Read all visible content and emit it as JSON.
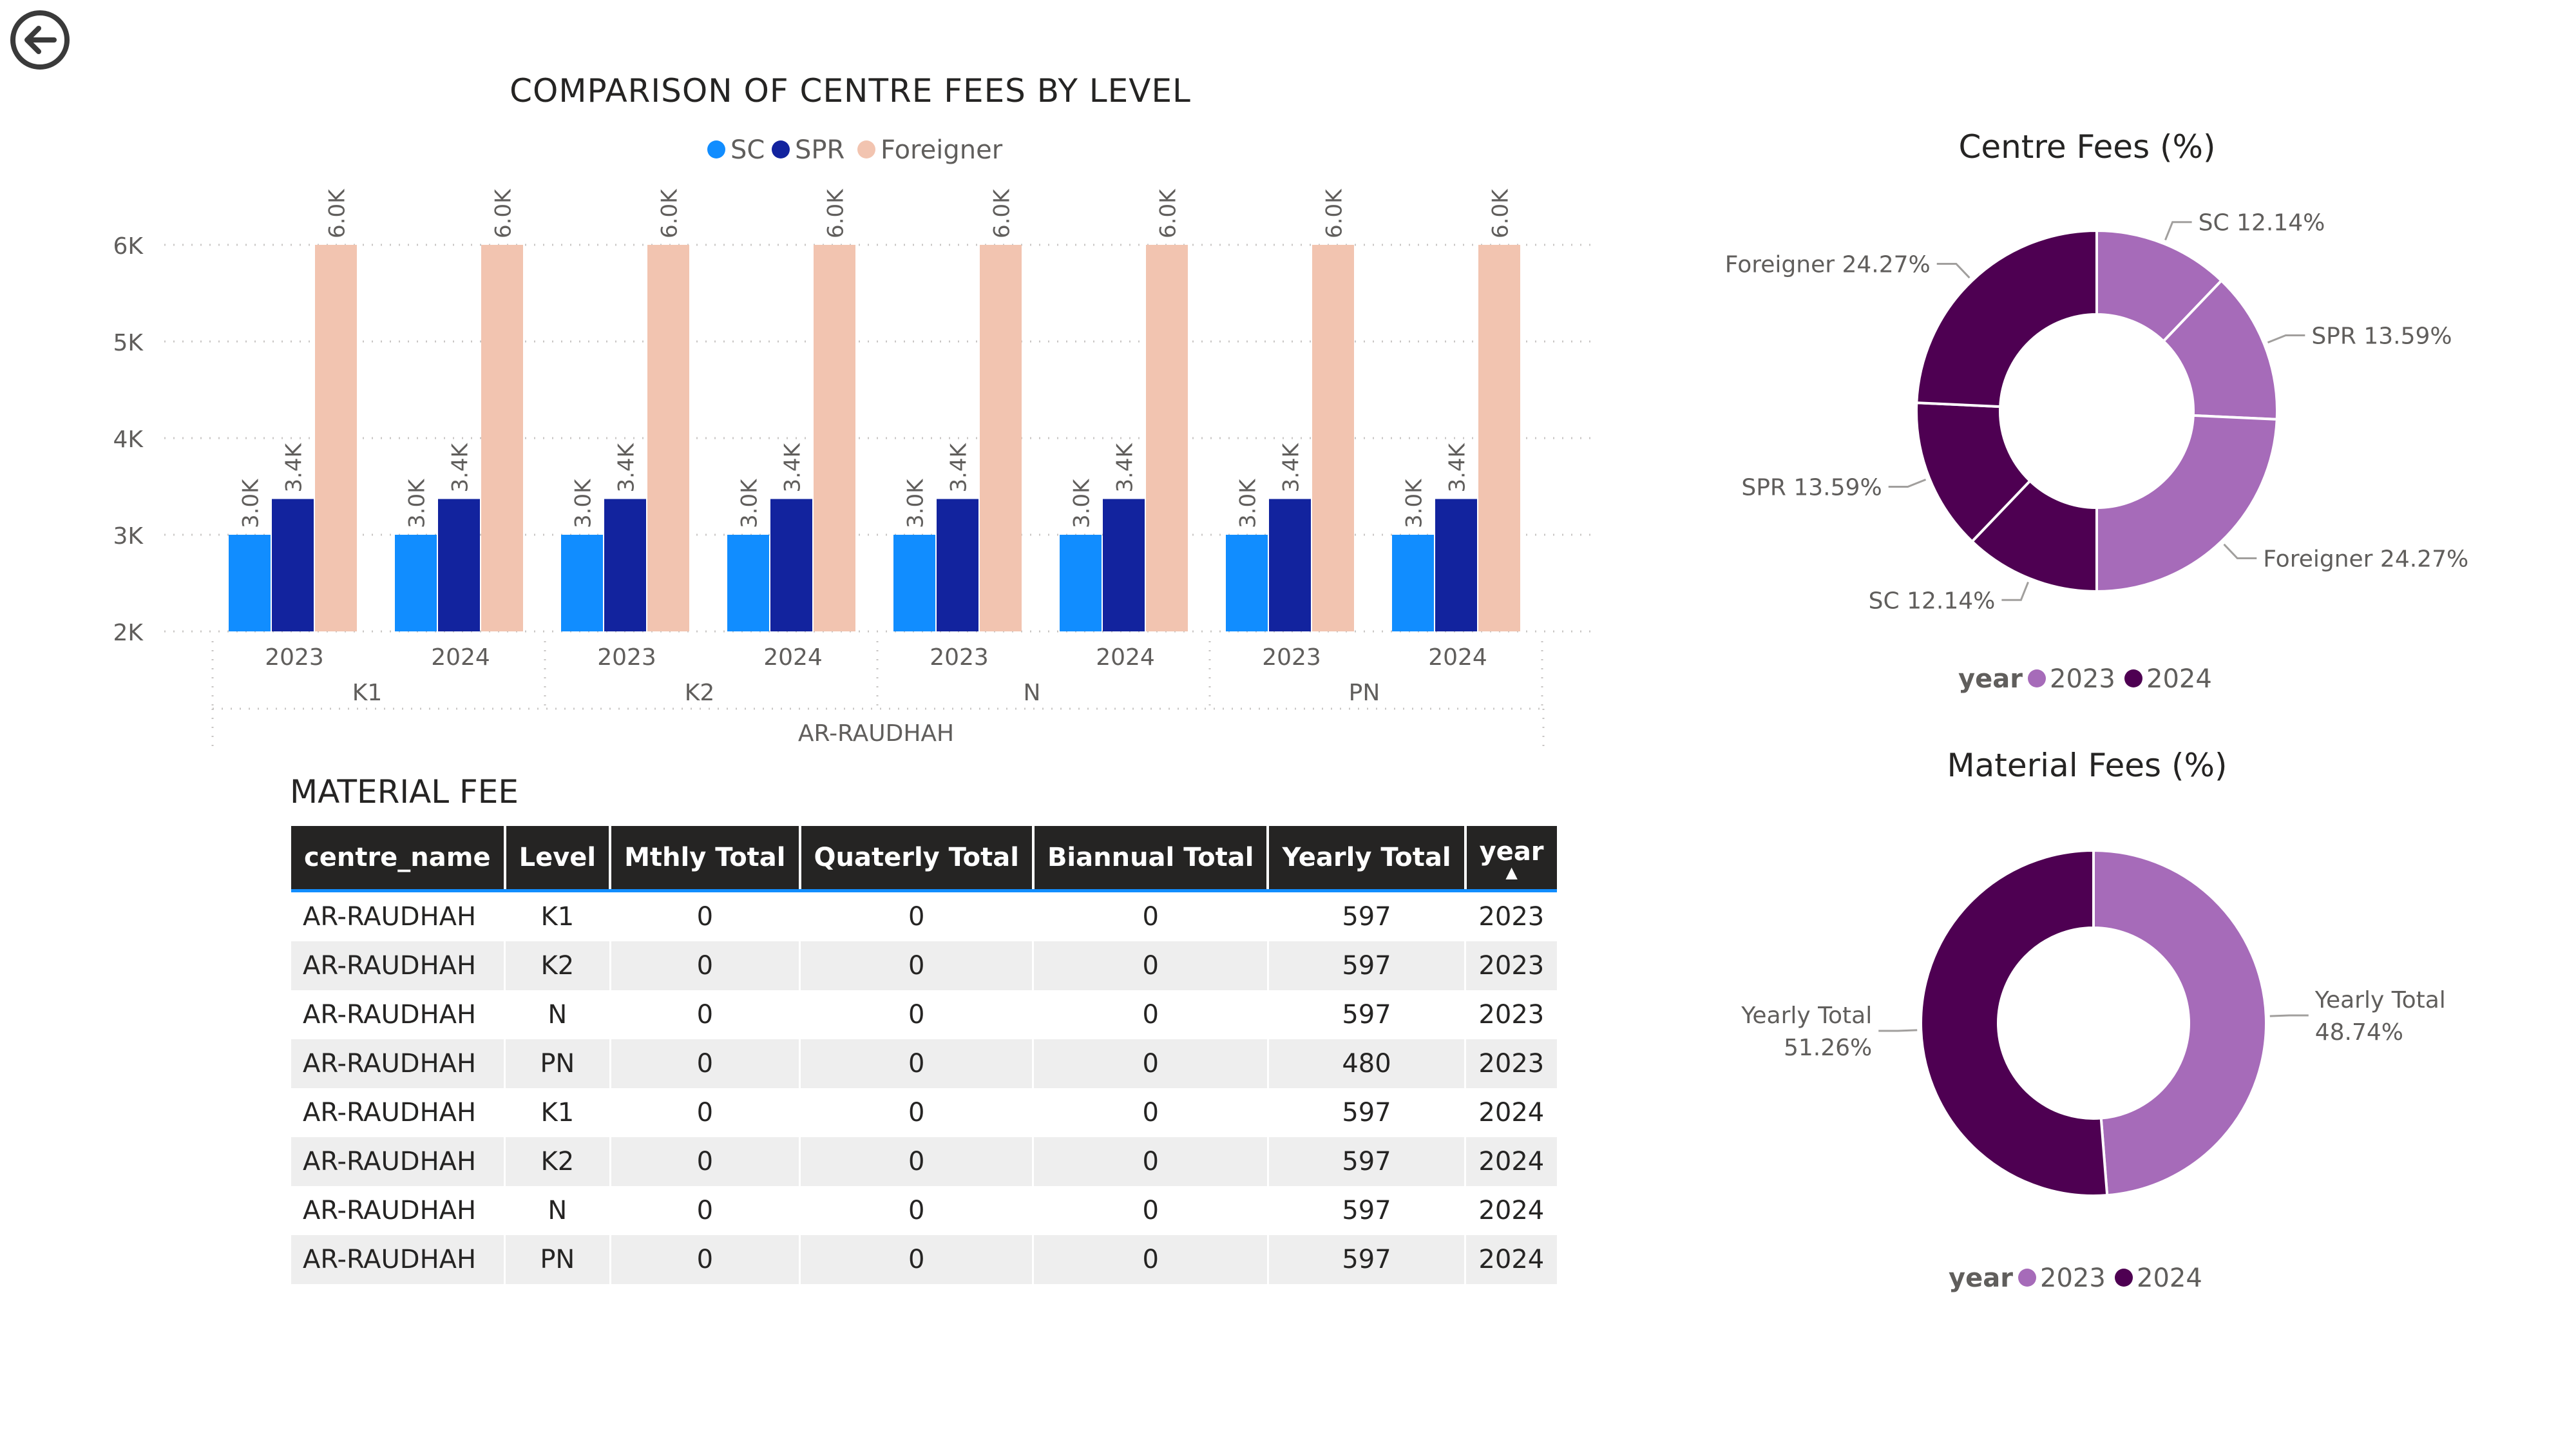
{
  "nav": {
    "back_icon": "back-arrow-icon"
  },
  "colors": {
    "sc": "#118DFF",
    "spr": "#12239E",
    "foreigner": "#F2C4B0",
    "y2023": "#A66BB9",
    "y2024": "#4E0052",
    "text": "#252423",
    "axis": "#605E5C"
  },
  "bar_chart": {
    "title": "COMPARISON OF CENTRE FEES BY LEVEL",
    "legend": [
      "SC",
      "SPR",
      "Foreigner"
    ]
  },
  "pie_centre": {
    "title": "Centre Fees (%)",
    "legend_title": "year",
    "legend": [
      "2023",
      "2024"
    ]
  },
  "pie_material": {
    "title": "Material Fees (%)",
    "legend_title": "year",
    "legend": [
      "2023",
      "2024"
    ]
  },
  "material_table": {
    "title": "MATERIAL FEE",
    "headers": [
      "centre_name",
      "Level",
      "Mthly Total",
      "Quaterly Total",
      "Biannual Total",
      "Yearly Total",
      "year"
    ],
    "rows": [
      [
        "AR-RAUDHAH",
        "K1",
        "0",
        "0",
        "0",
        "597",
        "2023"
      ],
      [
        "AR-RAUDHAH",
        "K2",
        "0",
        "0",
        "0",
        "597",
        "2023"
      ],
      [
        "AR-RAUDHAH",
        "N",
        "0",
        "0",
        "0",
        "597",
        "2023"
      ],
      [
        "AR-RAUDHAH",
        "PN",
        "0",
        "0",
        "0",
        "480",
        "2023"
      ],
      [
        "AR-RAUDHAH",
        "K1",
        "0",
        "0",
        "0",
        "597",
        "2024"
      ],
      [
        "AR-RAUDHAH",
        "K2",
        "0",
        "0",
        "0",
        "597",
        "2024"
      ],
      [
        "AR-RAUDHAH",
        "N",
        "0",
        "0",
        "0",
        "597",
        "2024"
      ],
      [
        "AR-RAUDHAH",
        "PN",
        "0",
        "0",
        "0",
        "597",
        "2024"
      ]
    ]
  },
  "chart_data": [
    {
      "type": "bar",
      "title": "COMPARISON OF CENTRE FEES BY LEVEL",
      "categories": [
        "2023",
        "2024",
        "2023",
        "2024",
        "2023",
        "2024",
        "2023",
        "2024"
      ],
      "levels": [
        "K1",
        "K2",
        "N",
        "PN"
      ],
      "centre": "AR-RAUDHAH",
      "series": [
        {
          "name": "SC",
          "values": [
            3000,
            3000,
            3000,
            3000,
            3000,
            3000,
            3000,
            3000
          ],
          "labels": [
            "3.0K",
            "3.0K",
            "3.0K",
            "3.0K",
            "3.0K",
            "3.0K",
            "3.0K",
            "3.0K"
          ]
        },
        {
          "name": "SPR",
          "values": [
            3370,
            3370,
            3370,
            3370,
            3370,
            3370,
            3370,
            3370
          ],
          "labels": [
            "3.4K",
            "3.4K",
            "3.4K",
            "3.4K",
            "3.4K",
            "3.4K",
            "3.4K",
            "3.4K"
          ]
        },
        {
          "name": "Foreigner",
          "values": [
            6000,
            6000,
            6000,
            6000,
            6000,
            6000,
            6000,
            6000
          ],
          "labels": [
            "6.0K",
            "6.0K",
            "6.0K",
            "6.0K",
            "6.0K",
            "6.0K",
            "6.0K",
            "6.0K"
          ]
        }
      ],
      "ylim": [
        2000,
        6000
      ],
      "yticks": [
        "2K",
        "3K",
        "4K",
        "5K",
        "6K"
      ],
      "legend_position": "top-center",
      "grid": true
    },
    {
      "type": "pie",
      "title": "Centre Fees (%)",
      "legend_title": "year",
      "legend_position": "bottom",
      "slices": [
        {
          "label": "SC 12.14%",
          "value": 12.14,
          "year": "2023"
        },
        {
          "label": "SPR 13.59%",
          "value": 13.59,
          "year": "2023"
        },
        {
          "label": "Foreigner 24.27%",
          "value": 24.27,
          "year": "2023"
        },
        {
          "label": "SC 12.14%",
          "value": 12.14,
          "year": "2024"
        },
        {
          "label": "SPR 13.59%",
          "value": 13.59,
          "year": "2024"
        },
        {
          "label": "Foreigner 24.27%",
          "value": 24.27,
          "year": "2024"
        }
      ]
    },
    {
      "type": "pie",
      "title": "Material Fees (%)",
      "legend_title": "year",
      "legend_position": "bottom",
      "slices": [
        {
          "label_lines": [
            "Yearly Total",
            "48.74%"
          ],
          "value": 48.74,
          "year": "2023"
        },
        {
          "label_lines": [
            "Yearly Total",
            "51.26%"
          ],
          "value": 51.26,
          "year": "2024"
        }
      ]
    }
  ]
}
